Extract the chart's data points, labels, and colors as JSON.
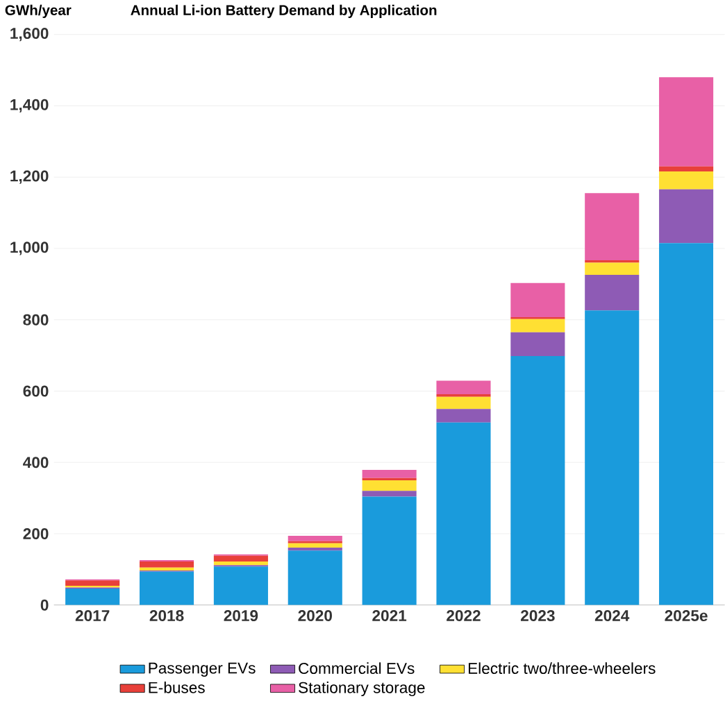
{
  "chart_data": {
    "type": "bar",
    "stacked": true,
    "title": "Annual Li-ion Battery Demand by Application",
    "ylabel": "GWh/year",
    "categories": [
      "2017",
      "2018",
      "2019",
      "2020",
      "2021",
      "2022",
      "2023",
      "2024",
      "2025e"
    ],
    "series": [
      {
        "name": "Passenger EVs",
        "color": "#1a9bdc",
        "values": [
          46,
          94,
          108,
          153,
          304,
          512,
          698,
          826,
          1015
        ]
      },
      {
        "name": "Commercial EVs",
        "color": "#8e5bb5",
        "values": [
          3,
          3,
          4,
          8,
          16,
          38,
          67,
          100,
          151
        ]
      },
      {
        "name": "Electric two/three-wheelers",
        "color": "#ffe033",
        "values": [
          5,
          8,
          10,
          12,
          30,
          34,
          37,
          34,
          50
        ]
      },
      {
        "name": "E-buses",
        "color": "#e8403a",
        "values": [
          15,
          17,
          16,
          6,
          6,
          7,
          5,
          7,
          14
        ]
      },
      {
        "name": "Stationary storage",
        "color": "#e860a6",
        "values": [
          3,
          4,
          4,
          15,
          23,
          38,
          96,
          188,
          250
        ]
      }
    ],
    "ylim": [
      0,
      1600
    ],
    "yticks": [
      {
        "value": 0,
        "label": "0"
      },
      {
        "value": 200,
        "label": "200"
      },
      {
        "value": 400,
        "label": "400"
      },
      {
        "value": 600,
        "label": "600"
      },
      {
        "value": 800,
        "label": "800"
      },
      {
        "value": 1000,
        "label": "1,000"
      },
      {
        "value": 1200,
        "label": "1,200"
      },
      {
        "value": 1400,
        "label": "1,400"
      },
      {
        "value": 1600,
        "label": "1,600"
      }
    ],
    "grid": "y",
    "legend": "bottom"
  }
}
